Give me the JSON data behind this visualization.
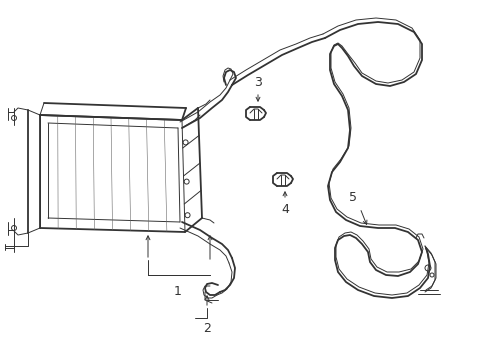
{
  "background_color": "#ffffff",
  "line_color": "#333333",
  "label_color": "#000000",
  "figsize": [
    4.89,
    3.6
  ],
  "dpi": 100,
  "xlim": [
    0,
    489
  ],
  "ylim": [
    360,
    0
  ]
}
